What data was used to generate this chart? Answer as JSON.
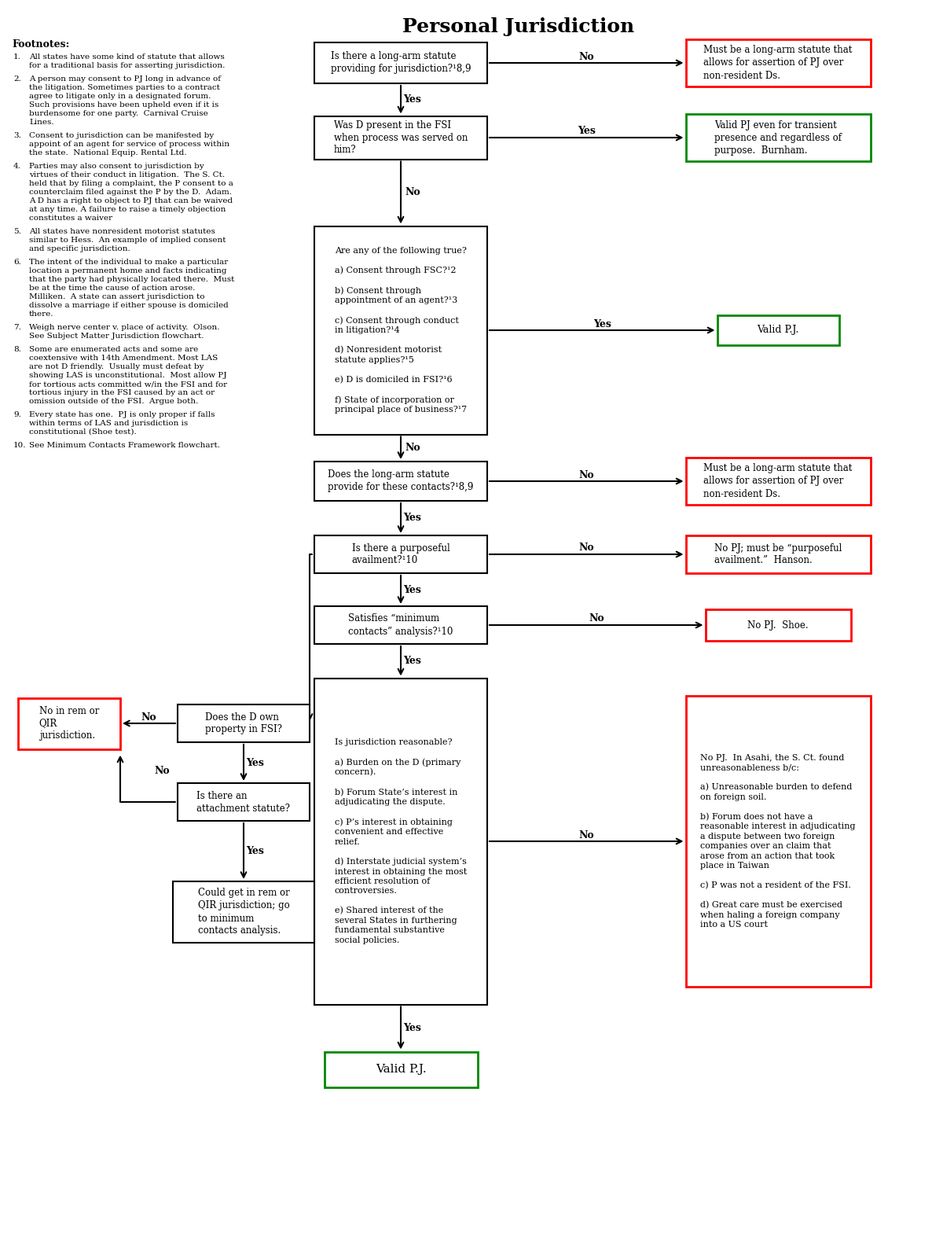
{
  "title": "Personal Jurisdiction",
  "footnotes": [
    "All states have some kind of statute that allows\nfor a traditional basis for asserting jurisdiction.",
    "A person may consent to PJ long in advance of\nthe litigation. Sometimes parties to a contract\nagree to litigate only in a designated forum.\nSuch provisions have been upheld even if it is\nburdensome for one party.  Carnival Cruise\nLines.",
    "Consent to jurisdiction can be manifested by\nappoint of an agent for service of process within\nthe state.  National Equip. Rental Ltd.",
    "Parties may also consent to jurisdiction by\nvirtues of their conduct in litigation.  The S. Ct.\nheld that by filing a complaint, the P consent to a\ncounterclaim filed against the P by the D.  Adam.\nA D has a right to object to PJ that can be waived\nat any time. A failure to raise a timely objection\nconstitutes a waiver",
    "All states have nonresident motorist statutes\nsimilar to Hess.  An example of implied consent\nand specific jurisdiction.",
    "The intent of the individual to make a particular\nlocation a permanent home and facts indicating\nthat the party had physically located there.  Must\nbe at the time the cause of action arose.\nMilliken.  A state can assert jurisdiction to\ndissolve a marriage if either spouse is domiciled\nthere.",
    "Weigh nerve center v. place of activity.  Olson.\nSee Subject Matter Jurisdiction flowchart.",
    "Some are enumerated acts and some are\ncoextensive with 14th Amendment. Most LAS\nare not D friendly.  Usually must defeat by\nshowing LAS is unconstitutional.  Most allow PJ\nfor tortious acts committed w/in the FSI and for\ntortious injury in the FSI caused by an act or\nomission outside of the FSI.  Argue both.",
    "Every state has one.  PJ is only proper if falls\nwithin terms of LAS and jurisdiction is\nconstitutional (Shoe test).",
    "See Minimum Contacts Framework flowchart."
  ],
  "nodes": {
    "q1": {
      "text": "Is there a long-arm statute\nproviding for jurisdiction?¹8,9",
      "type": "decision"
    },
    "r1": {
      "text": "Must be a long-arm statute that\nallows for assertion of PJ over\nnon-resident Ds.",
      "type": "red"
    },
    "q2": {
      "text": "Was D present in the FSI\nwhen process was served on\nhim?",
      "type": "decision"
    },
    "r2": {
      "text": "Valid PJ even for transient\npresence and regardless of\npurpose.  Burnham.",
      "type": "green"
    },
    "q3": {
      "text": "Are any of the following true?\n\na) Consent through FSC?¹2\n\nb) Consent through\nappointment of an agent?¹3\n\nc) Consent through conduct\nin litigation?¹4\n\nd) Nonresident motorist\nstatute applies?¹5\n\ne) D is domiciled in FSI?¹6\n\nf) State of incorporation or\nprincipal place of business?¹7",
      "type": "decision"
    },
    "r3": {
      "text": "Valid P.J.",
      "type": "green"
    },
    "q4": {
      "text": "Does the long-arm statute\nprovide for these contacts?¹8,9",
      "type": "decision"
    },
    "r4": {
      "text": "Must be a long-arm statute that\nallows for assertion of PJ over\nnon-resident Ds.",
      "type": "red"
    },
    "q5": {
      "text": "Is there a purposeful\navailment?¹10",
      "type": "decision"
    },
    "r5": {
      "text": "No PJ; must be “purposeful\navailment.”  Hanson.",
      "type": "red"
    },
    "q6": {
      "text": "Satisfies “minimum\ncontacts” analysis?¹10",
      "type": "decision"
    },
    "r6": {
      "text": "No PJ.  Shoe.",
      "type": "red"
    },
    "q7": {
      "text": "Is jurisdiction reasonable?\n\na) Burden on the D (primary\nconcern).\n\nb) Forum State’s interest in\nadjudicating the dispute.\n\nc) P’s interest in obtaining\nconvenient and effective\nrelief.\n\nd) Interstate judicial system’s\ninterest in obtaining the most\nefficient resolution of\ncontroversies.\n\ne) Shared interest of the\nseveral States in furthering\nfundamental substantive\nsocial policies.",
      "type": "decision"
    },
    "r7": {
      "text": "No PJ.  In Asahi, the S. Ct. found\nunreasonableness b/c:\n\na) Unreasonable burden to defend\non foreign soil.\n\nb) Forum does not have a\nreasonable interest in adjudicating\na dispute between two foreign\ncompanies over an claim that\narose from an action that took\nplace in Taiwan\n\nc) P was not a resident of the FSI.\n\nd) Great care must be exercised\nwhen haling a foreign company\ninto a US court",
      "type": "red"
    },
    "r8": {
      "text": "Valid P.J.",
      "type": "green"
    },
    "q8": {
      "text": "Does the D own\nproperty in FSI?",
      "type": "decision"
    },
    "r9": {
      "text": "No in rem or\nQIR\njurisdiction.",
      "type": "red"
    },
    "q9": {
      "text": "Is there an\nattachment statute?",
      "type": "decision"
    },
    "r10": {
      "text": "Could get in rem or\nQIR jurisdiction; go\nto minimum\ncontacts analysis.",
      "type": "plain"
    }
  }
}
